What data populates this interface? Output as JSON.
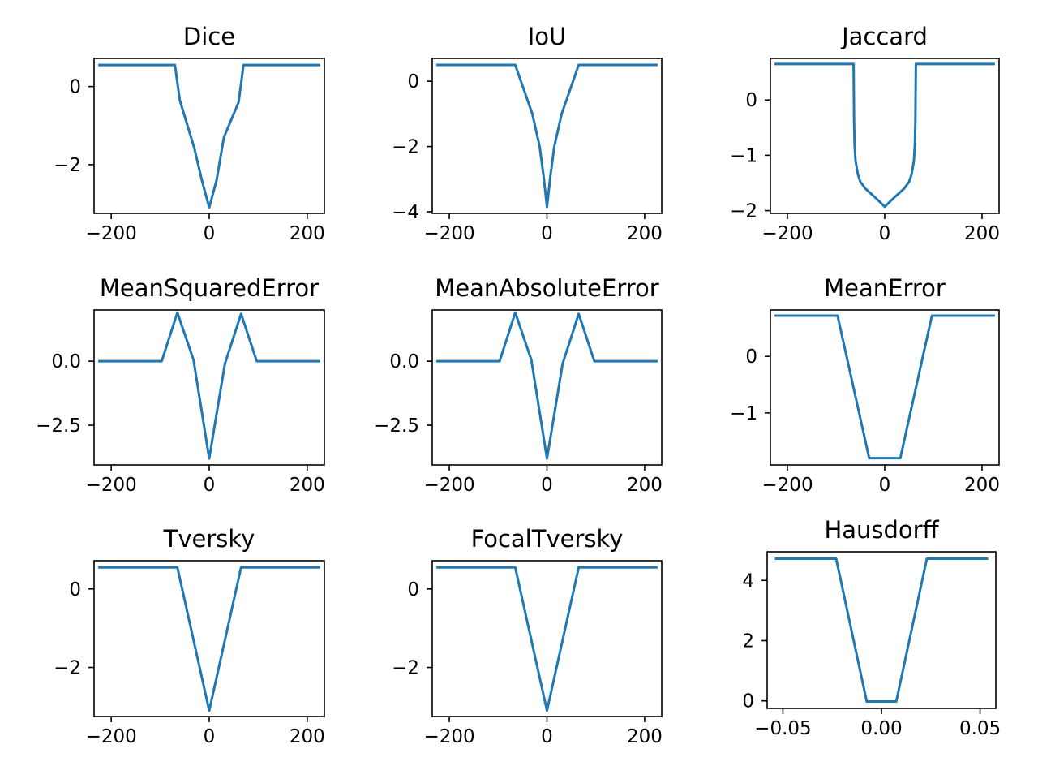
{
  "figure": {
    "line_color": "#1f77b4"
  },
  "chart_data": [
    {
      "type": "line",
      "title": "Dice",
      "xlabel": "",
      "ylabel": "",
      "xlim": [
        -235,
        235
      ],
      "ylim": [
        -3.25,
        0.72
      ],
      "xticks": [
        -200,
        0,
        200
      ],
      "xtick_labels": [
        "−200",
        "0",
        "200"
      ],
      "yticks": [
        -2,
        0
      ],
      "ytick_labels": [
        "−2",
        "0"
      ],
      "series": [
        {
          "x": [
            -224,
            -70,
            -60,
            -30,
            -15,
            0,
            15,
            30,
            60,
            70,
            224
          ],
          "y": [
            0.55,
            0.55,
            -0.35,
            -1.6,
            -2.4,
            -3.1,
            -2.4,
            -1.3,
            -0.4,
            0.55,
            0.55
          ]
        }
      ]
    },
    {
      "type": "line",
      "title": "IoU",
      "xlabel": "",
      "ylabel": "",
      "xlim": [
        -235,
        235
      ],
      "ylim": [
        -4.05,
        0.7
      ],
      "xticks": [
        -200,
        0,
        200
      ],
      "xtick_labels": [
        "−200",
        "0",
        "200"
      ],
      "yticks": [
        -4,
        -2,
        0
      ],
      "ytick_labels": [
        "−4",
        "−2",
        "0"
      ],
      "series": [
        {
          "x": [
            -224,
            -65,
            -30,
            -15,
            -7,
            0,
            7,
            15,
            30,
            65,
            224
          ],
          "y": [
            0.5,
            0.5,
            -1.0,
            -2.0,
            -2.9,
            -3.85,
            -2.9,
            -2.0,
            -1.0,
            0.5,
            0.5
          ]
        }
      ]
    },
    {
      "type": "line",
      "title": "Jaccard",
      "xlabel": "",
      "ylabel": "",
      "xlim": [
        -235,
        235
      ],
      "ylim": [
        -2.05,
        0.75
      ],
      "xticks": [
        -200,
        0,
        200
      ],
      "xtick_labels": [
        "−200",
        "0",
        "200"
      ],
      "yticks": [
        -2,
        -1,
        0
      ],
      "ytick_labels": [
        "−2",
        "−1",
        "0"
      ],
      "series": [
        {
          "x": [
            -224,
            -64,
            -63,
            -62,
            -60,
            -55,
            -50,
            -40,
            -30,
            -15,
            0,
            15,
            30,
            40,
            50,
            55,
            60,
            62,
            63,
            64,
            224
          ],
          "y": [
            0.65,
            0.65,
            -0.4,
            -0.8,
            -1.1,
            -1.35,
            -1.48,
            -1.6,
            -1.68,
            -1.8,
            -1.93,
            -1.8,
            -1.68,
            -1.6,
            -1.48,
            -1.35,
            -1.1,
            -0.8,
            -0.4,
            0.65,
            0.65
          ]
        }
      ]
    },
    {
      "type": "line",
      "title": "MeanSquaredError",
      "xlabel": "",
      "ylabel": "",
      "xlim": [
        -235,
        235
      ],
      "ylim": [
        -4.05,
        2.0
      ],
      "xticks": [
        -200,
        0,
        200
      ],
      "xtick_labels": [
        "−200",
        "0",
        "200"
      ],
      "yticks": [
        -2.5,
        0.0
      ],
      "ytick_labels": [
        "−2.5",
        "0.0"
      ],
      "series": [
        {
          "x": [
            -224,
            -97,
            -65,
            -32,
            0,
            32,
            65,
            97,
            224
          ],
          "y": [
            0.0,
            0.0,
            1.9,
            0.05,
            -3.8,
            -0.1,
            1.85,
            0.0,
            0.0
          ]
        }
      ]
    },
    {
      "type": "line",
      "title": "MeanAbsoluteError",
      "xlabel": "",
      "ylabel": "",
      "xlim": [
        -235,
        235
      ],
      "ylim": [
        -4.05,
        2.0
      ],
      "xticks": [
        -200,
        0,
        200
      ],
      "xtick_labels": [
        "−200",
        "0",
        "200"
      ],
      "yticks": [
        -2.5,
        0.0
      ],
      "ytick_labels": [
        "−2.5",
        "0.0"
      ],
      "series": [
        {
          "x": [
            -224,
            -97,
            -65,
            -32,
            0,
            32,
            65,
            97,
            224
          ],
          "y": [
            0.0,
            0.0,
            1.9,
            0.05,
            -3.8,
            -0.1,
            1.85,
            0.0,
            0.0
          ]
        }
      ]
    },
    {
      "type": "line",
      "title": "MeanError",
      "xlabel": "",
      "ylabel": "",
      "xlim": [
        -235,
        235
      ],
      "ylim": [
        -1.92,
        0.82
      ],
      "xticks": [
        -200,
        0,
        200
      ],
      "xtick_labels": [
        "−200",
        "0",
        "200"
      ],
      "yticks": [
        -1,
        0
      ],
      "ytick_labels": [
        "−1",
        "0"
      ],
      "series": [
        {
          "x": [
            -224,
            -97,
            -32,
            32,
            97,
            224
          ],
          "y": [
            0.72,
            0.72,
            -1.8,
            -1.8,
            0.72,
            0.72
          ]
        }
      ]
    },
    {
      "type": "line",
      "title": "Tversky",
      "xlabel": "",
      "ylabel": "",
      "xlim": [
        -235,
        235
      ],
      "ylim": [
        -3.25,
        0.72
      ],
      "xticks": [
        -200,
        0,
        200
      ],
      "xtick_labels": [
        "−200",
        "0",
        "200"
      ],
      "yticks": [
        -2,
        0
      ],
      "ytick_labels": [
        "−2",
        "0"
      ],
      "series": [
        {
          "x": [
            -224,
            -65,
            0,
            65,
            224
          ],
          "y": [
            0.55,
            0.55,
            -3.1,
            0.55,
            0.55
          ]
        }
      ]
    },
    {
      "type": "line",
      "title": "FocalTversky",
      "xlabel": "",
      "ylabel": "",
      "xlim": [
        -235,
        235
      ],
      "ylim": [
        -3.25,
        0.72
      ],
      "xticks": [
        -200,
        0,
        200
      ],
      "xtick_labels": [
        "−200",
        "0",
        "200"
      ],
      "yticks": [
        -2,
        0
      ],
      "ytick_labels": [
        "−2",
        "0"
      ],
      "series": [
        {
          "x": [
            -224,
            -65,
            0,
            65,
            224
          ],
          "y": [
            0.55,
            0.55,
            -3.1,
            0.55,
            0.55
          ]
        }
      ]
    },
    {
      "type": "line",
      "title": "Hausdorff",
      "xlabel": "",
      "ylabel": "",
      "xlim": [
        -0.058,
        0.058
      ],
      "ylim": [
        -0.25,
        4.95
      ],
      "xticks": [
        -0.05,
        0.0,
        0.05
      ],
      "xtick_labels": [
        "−0.05",
        "0.00",
        "0.05"
      ],
      "yticks": [
        0,
        2,
        4
      ],
      "ytick_labels": [
        "0",
        "2",
        "4"
      ],
      "series": [
        {
          "x": [
            -0.0535,
            -0.023,
            -0.0075,
            0.0075,
            0.023,
            0.0535
          ],
          "y": [
            4.72,
            4.72,
            -0.02,
            -0.02,
            4.72,
            4.72
          ]
        }
      ]
    }
  ]
}
